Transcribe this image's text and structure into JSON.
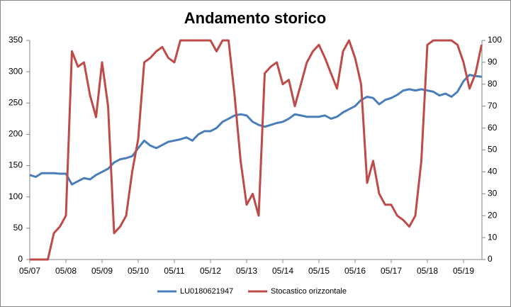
{
  "chart_data": {
    "type": "line",
    "title": "Andamento storico",
    "categories": [
      "05/07",
      null,
      null,
      null,
      null,
      null,
      "05/08",
      null,
      null,
      null,
      null,
      null,
      "05/09",
      null,
      null,
      null,
      null,
      null,
      "05/10",
      null,
      null,
      null,
      null,
      null,
      "05/11",
      null,
      null,
      null,
      null,
      null,
      "05/12",
      null,
      null,
      null,
      null,
      null,
      "05/13",
      null,
      null,
      null,
      null,
      null,
      "05/14",
      null,
      null,
      null,
      null,
      null,
      "05/15",
      null,
      null,
      null,
      null,
      null,
      "05/16",
      null,
      null,
      null,
      null,
      null,
      "05/17",
      null,
      null,
      null,
      null,
      null,
      "05/18",
      null,
      null,
      null,
      null,
      null,
      "05/19",
      null,
      null,
      null
    ],
    "series": [
      {
        "name": "LU0180621947",
        "color": "#4a7ebb",
        "values": [
          135,
          132,
          138,
          138,
          138,
          137,
          137,
          120,
          125,
          130,
          128,
          135,
          140,
          145,
          155,
          160,
          162,
          165,
          178,
          190,
          182,
          178,
          183,
          188,
          190,
          192,
          195,
          190,
          200,
          205,
          205,
          210,
          220,
          225,
          230,
          232,
          230,
          220,
          215,
          212,
          215,
          218,
          220,
          225,
          232,
          230,
          228,
          228,
          228,
          230,
          225,
          228,
          235,
          240,
          245,
          255,
          260,
          258,
          248,
          255,
          258,
          263,
          270,
          272,
          270,
          272,
          270,
          268,
          262,
          265,
          260,
          268,
          285,
          295,
          293,
          292
        ]
      },
      {
        "name": "Stocastico orizzontale",
        "color": "#be4b48",
        "axis": "y2",
        "values": [
          0,
          0,
          0,
          0,
          12,
          15,
          20,
          95,
          88,
          90,
          75,
          65,
          90,
          70,
          12,
          15,
          20,
          40,
          55,
          90,
          92,
          95,
          97,
          92,
          90,
          100,
          100,
          100,
          100,
          100,
          100,
          95,
          100,
          100,
          75,
          45,
          25,
          30,
          20,
          85,
          88,
          90,
          80,
          82,
          70,
          80,
          90,
          95,
          98,
          92,
          85,
          78,
          95,
          100,
          92,
          80,
          35,
          45,
          30,
          25,
          25,
          20,
          18,
          15,
          20,
          45,
          98,
          100,
          100,
          100,
          100,
          98,
          90,
          78,
          85,
          98
        ]
      }
    ],
    "ylim": [
      0,
      350
    ],
    "yticks": [
      0,
      50,
      100,
      150,
      200,
      250,
      300,
      350
    ],
    "y2lim": [
      0,
      100
    ],
    "y2ticks": [
      0,
      10,
      20,
      30,
      40,
      50,
      60,
      70,
      80,
      90,
      100
    ],
    "grid": false,
    "legend": "bottom"
  }
}
